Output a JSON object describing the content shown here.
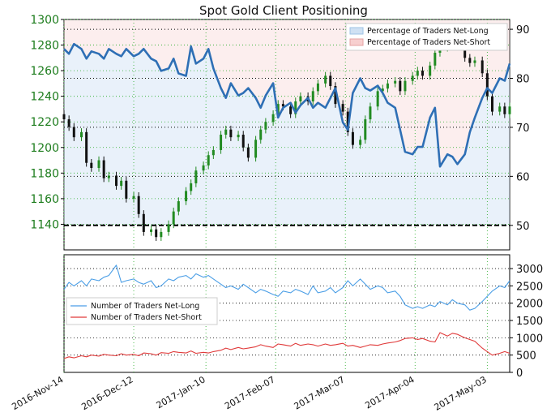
{
  "chart_data": [
    {
      "type": "line",
      "title": "Spot Gold Client Positioning",
      "ylim_left": [
        1120,
        1300
      ],
      "yticks_left": [
        1140,
        1160,
        1180,
        1200,
        1220,
        1240,
        1260,
        1280,
        1300
      ],
      "ylim_right": [
        45,
        92
      ],
      "yticks_right": [
        50,
        60,
        70,
        80,
        90
      ],
      "xlim": [
        "2016-11-14",
        "2017-05-12"
      ],
      "xticks": [
        "2016-Nov-14",
        "2016-Dec-12",
        "2017-Jan-10",
        "2017-Feb-07",
        "2017-Mar-07",
        "2017-Apr-04",
        "2017-May-03"
      ],
      "legend": {
        "placement": "top-right",
        "entries": [
          "Percentage of Traders Net-Long",
          "Percentage of Traders Net-Short"
        ]
      },
      "reference_line": 50,
      "series": [
        {
          "name": "Percentage of Traders Net-Long",
          "color": "#2e6fb5",
          "x": [
            "2016-11-14",
            "2016-11-16",
            "2016-11-18",
            "2016-11-21",
            "2016-11-23",
            "2016-11-25",
            "2016-11-28",
            "2016-11-30",
            "2016-12-02",
            "2016-12-05",
            "2016-12-07",
            "2016-12-09",
            "2016-12-12",
            "2016-12-14",
            "2016-12-16",
            "2016-12-19",
            "2016-12-21",
            "2016-12-23",
            "2016-12-26",
            "2016-12-28",
            "2016-12-30",
            "2017-01-02",
            "2017-01-04",
            "2017-01-06",
            "2017-01-09",
            "2017-01-11",
            "2017-01-13",
            "2017-01-16",
            "2017-01-18",
            "2017-01-20",
            "2017-01-23",
            "2017-01-25",
            "2017-01-27",
            "2017-01-30",
            "2017-02-01",
            "2017-02-03",
            "2017-02-06",
            "2017-02-08",
            "2017-02-10",
            "2017-02-13",
            "2017-02-15",
            "2017-02-17",
            "2017-02-20",
            "2017-02-22",
            "2017-02-24",
            "2017-02-27",
            "2017-03-01",
            "2017-03-03",
            "2017-03-06",
            "2017-03-08",
            "2017-03-10",
            "2017-03-13",
            "2017-03-15",
            "2017-03-17",
            "2017-03-20",
            "2017-03-22",
            "2017-03-24",
            "2017-03-27",
            "2017-03-29",
            "2017-03-31",
            "2017-04-03",
            "2017-04-05",
            "2017-04-07",
            "2017-04-10",
            "2017-04-12",
            "2017-04-14",
            "2017-04-17",
            "2017-04-19",
            "2017-04-21",
            "2017-04-24",
            "2017-04-26",
            "2017-04-28",
            "2017-05-01",
            "2017-05-03",
            "2017-05-05",
            "2017-05-08",
            "2017-05-10",
            "2017-05-12"
          ],
          "values": [
            86.0,
            85.0,
            87.0,
            86.0,
            84.0,
            85.5,
            85.0,
            84.0,
            86.0,
            85.0,
            84.5,
            86.0,
            84.5,
            85.0,
            86.0,
            84.0,
            83.5,
            81.5,
            82.0,
            84.0,
            81.0,
            80.5,
            86.5,
            83.0,
            84.0,
            86.0,
            82.0,
            78.0,
            76.0,
            79.0,
            76.5,
            77.0,
            78.0,
            76.0,
            74.0,
            76.5,
            79.0,
            72.0,
            74.0,
            75.0,
            73.0,
            74.5,
            76.0,
            74.0,
            75.0,
            74.0,
            76.0,
            78.0,
            71.0,
            69.5,
            77.0,
            80.0,
            78.0,
            77.5,
            78.5,
            77.0,
            75.0,
            74.0,
            69.5,
            65.0,
            64.5,
            66.0,
            66.0,
            72.0,
            74.0,
            62.0,
            64.5,
            64.0,
            62.5,
            64.5,
            69.0,
            72.0,
            76.0,
            78.0,
            77.0,
            80.0,
            79.5,
            83.0
          ]
        },
        {
          "name": "Spot Gold",
          "type": "candlestick",
          "color_up": "#228b22",
          "color_down": "#111111",
          "x": [
            "2016-11-14",
            "2016-11-16",
            "2016-11-18",
            "2016-11-21",
            "2016-11-23",
            "2016-11-25",
            "2016-11-28",
            "2016-11-30",
            "2016-12-02",
            "2016-12-05",
            "2016-12-07",
            "2016-12-09",
            "2016-12-12",
            "2016-12-14",
            "2016-12-16",
            "2016-12-19",
            "2016-12-21",
            "2016-12-23",
            "2016-12-26",
            "2016-12-28",
            "2016-12-30",
            "2017-01-02",
            "2017-01-04",
            "2017-01-06",
            "2017-01-09",
            "2017-01-11",
            "2017-01-13",
            "2017-01-16",
            "2017-01-18",
            "2017-01-20",
            "2017-01-23",
            "2017-01-25",
            "2017-01-27",
            "2017-01-30",
            "2017-02-01",
            "2017-02-03",
            "2017-02-06",
            "2017-02-08",
            "2017-02-10",
            "2017-02-13",
            "2017-02-15",
            "2017-02-17",
            "2017-02-20",
            "2017-02-22",
            "2017-02-24",
            "2017-02-27",
            "2017-03-01",
            "2017-03-03",
            "2017-03-06",
            "2017-03-08",
            "2017-03-10",
            "2017-03-13",
            "2017-03-15",
            "2017-03-17",
            "2017-03-20",
            "2017-03-22",
            "2017-03-24",
            "2017-03-27",
            "2017-03-29",
            "2017-03-31",
            "2017-04-03",
            "2017-04-05",
            "2017-04-07",
            "2017-04-10",
            "2017-04-12",
            "2017-04-14",
            "2017-04-17",
            "2017-04-19",
            "2017-04-21",
            "2017-04-24",
            "2017-04-26",
            "2017-04-28",
            "2017-05-01",
            "2017-05-03",
            "2017-05-05",
            "2017-05-08",
            "2017-05-10",
            "2017-05-12"
          ],
          "close": [
            1222,
            1216,
            1208,
            1212,
            1188,
            1184,
            1190,
            1176,
            1178,
            1170,
            1174,
            1160,
            1162,
            1148,
            1134,
            1136,
            1130,
            1134,
            1140,
            1150,
            1158,
            1166,
            1172,
            1182,
            1186,
            1194,
            1198,
            1210,
            1214,
            1208,
            1210,
            1200,
            1192,
            1206,
            1214,
            1220,
            1226,
            1234,
            1232,
            1226,
            1236,
            1240,
            1236,
            1244,
            1250,
            1256,
            1248,
            1234,
            1228,
            1212,
            1202,
            1206,
            1222,
            1232,
            1244,
            1246,
            1250,
            1252,
            1244,
            1252,
            1256,
            1260,
            1256,
            1264,
            1274,
            1278,
            1288,
            1284,
            1284,
            1270,
            1266,
            1268,
            1258,
            1240,
            1228,
            1232,
            1226,
            1232
          ]
        }
      ]
    },
    {
      "type": "line",
      "ylim": [
        0,
        3400
      ],
      "yticks": [
        0,
        500,
        1000,
        1500,
        2000,
        2500,
        3000
      ],
      "xlim": [
        "2016-11-14",
        "2017-05-12"
      ],
      "legend": {
        "placement": "left",
        "entries": [
          "Number of Traders Net-Long",
          "Number of Traders Net-Short"
        ]
      },
      "series": [
        {
          "name": "Number of Traders Net-Long",
          "color": "#4a9ee6",
          "x": [
            "2016-11-14",
            "2016-11-16",
            "2016-11-18",
            "2016-11-21",
            "2016-11-23",
            "2016-11-25",
            "2016-11-28",
            "2016-11-30",
            "2016-12-02",
            "2016-12-05",
            "2016-12-07",
            "2016-12-09",
            "2016-12-12",
            "2016-12-14",
            "2016-12-16",
            "2016-12-19",
            "2016-12-21",
            "2016-12-23",
            "2016-12-26",
            "2016-12-28",
            "2016-12-30",
            "2017-01-02",
            "2017-01-04",
            "2017-01-06",
            "2017-01-09",
            "2017-01-11",
            "2017-01-13",
            "2017-01-16",
            "2017-01-18",
            "2017-01-20",
            "2017-01-23",
            "2017-01-25",
            "2017-01-27",
            "2017-01-30",
            "2017-02-01",
            "2017-02-03",
            "2017-02-06",
            "2017-02-08",
            "2017-02-10",
            "2017-02-13",
            "2017-02-15",
            "2017-02-17",
            "2017-02-20",
            "2017-02-22",
            "2017-02-24",
            "2017-02-27",
            "2017-03-01",
            "2017-03-03",
            "2017-03-06",
            "2017-03-08",
            "2017-03-10",
            "2017-03-13",
            "2017-03-15",
            "2017-03-17",
            "2017-03-20",
            "2017-03-22",
            "2017-03-24",
            "2017-03-27",
            "2017-03-29",
            "2017-03-31",
            "2017-04-03",
            "2017-04-05",
            "2017-04-07",
            "2017-04-10",
            "2017-04-12",
            "2017-04-14",
            "2017-04-17",
            "2017-04-19",
            "2017-04-21",
            "2017-04-24",
            "2017-04-26",
            "2017-04-28",
            "2017-05-01",
            "2017-05-03",
            "2017-05-05",
            "2017-05-08",
            "2017-05-10",
            "2017-05-12"
          ],
          "values": [
            2400,
            2600,
            2500,
            2650,
            2500,
            2700,
            2650,
            2750,
            2800,
            3100,
            2600,
            2650,
            2700,
            2600,
            2550,
            2650,
            2450,
            2500,
            2700,
            2650,
            2750,
            2800,
            2700,
            2850,
            2750,
            2800,
            2700,
            2550,
            2450,
            2500,
            2400,
            2550,
            2450,
            2300,
            2400,
            2350,
            2250,
            2200,
            2350,
            2300,
            2400,
            2350,
            2250,
            2500,
            2300,
            2350,
            2450,
            2300,
            2450,
            2650,
            2500,
            2700,
            2550,
            2400,
            2500,
            2450,
            2300,
            2350,
            2200,
            1950,
            1850,
            1900,
            1850,
            1950,
            1900,
            2050,
            1950,
            2100,
            2000,
            1950,
            1800,
            1850,
            2050,
            2200,
            2350,
            2500,
            2450,
            2650
          ]
        },
        {
          "name": "Number of Traders Net-Short",
          "color": "#e03a3a",
          "x": [
            "2016-11-14",
            "2016-11-16",
            "2016-11-18",
            "2016-11-21",
            "2016-11-23",
            "2016-11-25",
            "2016-11-28",
            "2016-11-30",
            "2016-12-02",
            "2016-12-05",
            "2016-12-07",
            "2016-12-09",
            "2016-12-12",
            "2016-12-14",
            "2016-12-16",
            "2016-12-19",
            "2016-12-21",
            "2016-12-23",
            "2016-12-26",
            "2016-12-28",
            "2016-12-30",
            "2017-01-02",
            "2017-01-04",
            "2017-01-06",
            "2017-01-09",
            "2017-01-11",
            "2017-01-13",
            "2017-01-16",
            "2017-01-18",
            "2017-01-20",
            "2017-01-23",
            "2017-01-25",
            "2017-01-27",
            "2017-01-30",
            "2017-02-01",
            "2017-02-03",
            "2017-02-06",
            "2017-02-08",
            "2017-02-10",
            "2017-02-13",
            "2017-02-15",
            "2017-02-17",
            "2017-02-20",
            "2017-02-22",
            "2017-02-24",
            "2017-02-27",
            "2017-03-01",
            "2017-03-03",
            "2017-03-06",
            "2017-03-08",
            "2017-03-10",
            "2017-03-13",
            "2017-03-15",
            "2017-03-17",
            "2017-03-20",
            "2017-03-22",
            "2017-03-24",
            "2017-03-27",
            "2017-03-29",
            "2017-03-31",
            "2017-04-03",
            "2017-04-05",
            "2017-04-07",
            "2017-04-10",
            "2017-04-12",
            "2017-04-14",
            "2017-04-17",
            "2017-04-19",
            "2017-04-21",
            "2017-04-24",
            "2017-04-26",
            "2017-04-28",
            "2017-05-01",
            "2017-05-03",
            "2017-05-05",
            "2017-05-08",
            "2017-05-10",
            "2017-05-12"
          ],
          "values": [
            400,
            450,
            420,
            480,
            450,
            500,
            470,
            520,
            500,
            480,
            540,
            500,
            520,
            480,
            560,
            540,
            500,
            570,
            550,
            600,
            580,
            560,
            620,
            550,
            580,
            560,
            600,
            640,
            700,
            660,
            720,
            680,
            700,
            740,
            800,
            760,
            720,
            820,
            800,
            760,
            840,
            780,
            820,
            800,
            760,
            820,
            780,
            800,
            840,
            760,
            780,
            720,
            760,
            800,
            780,
            820,
            850,
            880,
            920,
            980,
            1000,
            950,
            980,
            900,
            880,
            1150,
            1050,
            1130,
            1100,
            1000,
            950,
            900,
            700,
            600,
            500,
            550,
            600,
            550
          ]
        }
      ]
    }
  ]
}
